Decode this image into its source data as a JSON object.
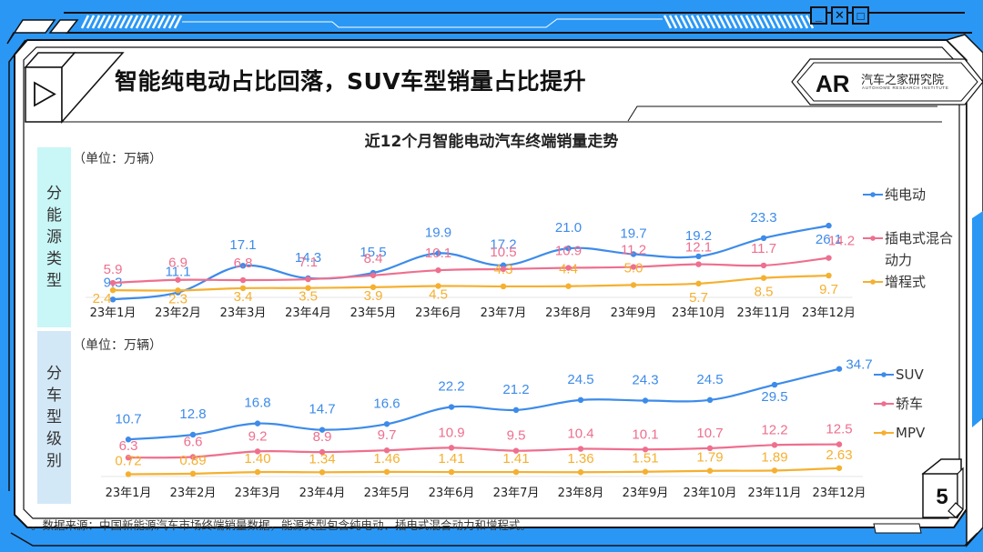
{
  "header": {
    "title": "智能纯电动占比回落，SUV车型销量占比提升",
    "logo_mark": "AR",
    "logo_name": "汽车之家研究院",
    "logo_sub": "AUTOHOME RESEARCH INSTITUTE",
    "window_buttons": [
      "minimize",
      "close",
      "maximize"
    ],
    "window_glyphs": {
      "minimize": "_",
      "close": "✕",
      "maximize": "□"
    },
    "play_icon": "▷"
  },
  "page_number": "5",
  "footnote": "。数据来源：中国新能源汽车市场终端销量数据，能源类型包含纯电动、插电式混合动力和增程式。",
  "colors": {
    "frame_blue": "#2b97f5",
    "series_blue": "#3d8bea",
    "series_pink": "#ee6f8e",
    "series_orange": "#f5b030",
    "side_panel_top": "#c9f6f7",
    "side_panel_bottom": "#d3e8f7"
  },
  "chart_data": [
    {
      "type": "line",
      "title": "近12个月智能电动汽车终端销量走势",
      "section_label": "分能源类型",
      "unit_label": "（单位：万辆）",
      "xlabel": "",
      "ylabel": "万辆",
      "categories": [
        "23年1月",
        "23年2月",
        "23年3月",
        "23年4月",
        "23年5月",
        "23年6月",
        "23年7月",
        "23年8月",
        "23年9月",
        "23年10月",
        "23年11月",
        "23年12月"
      ],
      "legend_position": "right",
      "grid": false,
      "series": [
        {
          "name": "纯电动",
          "color": "#3d8bea",
          "values": [
            9.3,
            11.1,
            17.1,
            14.3,
            15.5,
            19.9,
            17.2,
            21.0,
            19.7,
            19.2,
            23.3,
            26.1
          ],
          "labels": [
            "9.3",
            "11.1",
            "17.1",
            "14.3",
            "15.5",
            "19.9",
            "17.2",
            "21.0",
            "19.7",
            "19.2",
            "23.3",
            "26.1"
          ]
        },
        {
          "name": "插电式混合动力",
          "color": "#ee6f8e",
          "values": [
            5.9,
            6.9,
            6.8,
            7.1,
            8.4,
            10.1,
            10.5,
            10.9,
            11.2,
            12.1,
            11.7,
            14.2
          ],
          "labels": [
            "5.9",
            "6.9",
            "6.8",
            "7.1",
            "8.4",
            "10.1",
            "10.5",
            "10.9",
            "11.2",
            "12.1",
            "11.7",
            "14.2"
          ]
        },
        {
          "name": "增程式",
          "color": "#f5b030",
          "values": [
            2.4,
            2.3,
            3.4,
            3.5,
            3.9,
            4.5,
            4.3,
            4.4,
            5.0,
            5.7,
            8.5,
            9.7
          ],
          "labels": [
            "2.4",
            "2.3",
            "3.4",
            "3.5",
            "3.9",
            "4.5",
            "4.3",
            "4.4",
            "5.0",
            "5.7",
            "8.5",
            "9.7"
          ]
        }
      ]
    },
    {
      "type": "line",
      "title": "",
      "section_label": "分车型级别",
      "unit_label": "（单位：万辆）",
      "xlabel": "",
      "ylabel": "万辆",
      "categories": [
        "23年1月",
        "23年2月",
        "23年3月",
        "23年4月",
        "23年5月",
        "23年6月",
        "23年7月",
        "23年8月",
        "23年9月",
        "23年10月",
        "23年11月",
        "23年12月"
      ],
      "legend_position": "right",
      "grid": false,
      "series": [
        {
          "name": "SUV",
          "color": "#3d8bea",
          "values": [
            10.7,
            12.8,
            16.8,
            14.7,
            16.6,
            22.2,
            21.2,
            24.5,
            24.3,
            24.5,
            29.5,
            34.7
          ],
          "labels": [
            "10.7",
            "12.8",
            "16.8",
            "14.7",
            "16.6",
            "22.2",
            "21.2",
            "24.5",
            "24.3",
            "24.5",
            "29.5",
            "34.7"
          ]
        },
        {
          "name": "轿车",
          "color": "#ee6f8e",
          "values": [
            6.3,
            6.6,
            9.2,
            8.9,
            9.7,
            10.9,
            9.5,
            10.4,
            10.1,
            10.7,
            12.2,
            12.5
          ],
          "labels": [
            "6.3",
            "6.6",
            "9.2",
            "8.9",
            "9.7",
            "10.9",
            "9.5",
            "10.4",
            "10.1",
            "10.7",
            "12.2",
            "12.5"
          ]
        },
        {
          "name": "MPV",
          "color": "#f5b030",
          "values": [
            0.72,
            0.89,
            1.4,
            1.34,
            1.46,
            1.41,
            1.41,
            1.36,
            1.51,
            1.79,
            1.89,
            2.63
          ],
          "labels": [
            "0.72",
            "0.89",
            "1.40",
            "1.34",
            "1.46",
            "1.41",
            "1.41",
            "1.36",
            "1.51",
            "1.79",
            "1.89",
            "2.63"
          ]
        }
      ]
    }
  ]
}
